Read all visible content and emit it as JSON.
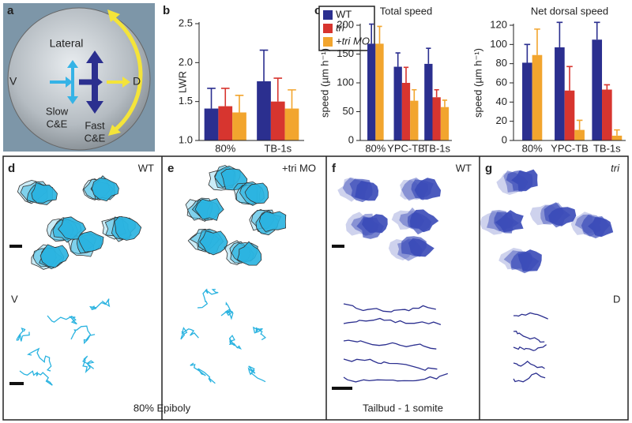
{
  "chart_data": [
    {
      "type": "bar",
      "ylabel": "LWR",
      "categories": [
        "80%",
        "TB-1s"
      ],
      "series": [
        {
          "name": "WT",
          "color": "#2b2f8f",
          "values": [
            1.41,
            1.76
          ],
          "errors": [
            0.26,
            0.4
          ]
        },
        {
          "name": "tri",
          "color": "#d7352f",
          "values": [
            1.44,
            1.5
          ],
          "errors": [
            0.23,
            0.3
          ]
        },
        {
          "name": "+tri MO",
          "color": "#f2a52e",
          "values": [
            1.36,
            1.41
          ],
          "errors": [
            0.22,
            0.24
          ]
        }
      ],
      "ylim": [
        1.0,
        2.5
      ],
      "yticks": [
        {
          "value": 1.0,
          "label": "1.0"
        },
        {
          "value": 1.5,
          "label": "1.5"
        },
        {
          "value": 2.0,
          "label": "2.0"
        },
        {
          "value": 2.5,
          "label": "2.5"
        }
      ]
    },
    {
      "type": "bar",
      "title": "Total speed",
      "ylabel": "speed (µm h⁻¹)",
      "categories": [
        "80%",
        "YPC-TB",
        "TB-1s"
      ],
      "series": [
        {
          "color": "#2b2f8f",
          "values": [
            168,
            128,
            133
          ],
          "errors": [
            34,
            24,
            27
          ]
        },
        {
          "color": "#d7352f",
          "values": [
            null,
            100,
            75
          ],
          "errors": [
            null,
            27,
            13
          ]
        },
        {
          "color": "#f2a52e",
          "values": [
            168,
            69,
            58
          ],
          "errors": [
            30,
            19,
            12
          ]
        }
      ],
      "ylim": [
        0,
        200
      ],
      "yticks": [
        0,
        50,
        100,
        150,
        200
      ]
    },
    {
      "type": "bar",
      "title": "Net dorsal speed",
      "ylabel": "speed (µm h⁻¹)",
      "categories": [
        "80%",
        "YPC-TB",
        "TB-1s"
      ],
      "series": [
        {
          "color": "#2b2f8f",
          "values": [
            81,
            97,
            105
          ],
          "errors": [
            19,
            26,
            18
          ]
        },
        {
          "color": "#d7352f",
          "values": [
            null,
            52,
            53
          ],
          "errors": [
            null,
            25,
            5
          ]
        },
        {
          "color": "#f2a52e",
          "values": [
            89,
            11,
            5
          ],
          "errors": [
            27,
            10,
            6
          ]
        }
      ],
      "ylim": [
        0,
        120
      ],
      "yticks": [
        0,
        20,
        40,
        60,
        80,
        100,
        120
      ]
    }
  ],
  "panel_labels": [
    "a",
    "b",
    "c",
    "d",
    "e",
    "f",
    "g"
  ],
  "diagram": {
    "lateral": "Lateral",
    "ventral": "V",
    "dorsal": "D",
    "slow": "Slow",
    "slow_ce": "C&E",
    "fast": "Fast",
    "fast_ce": "C&E"
  },
  "tracks": {
    "d_label": "WT",
    "e_label": "+tri MO",
    "f_label": "WT",
    "g_label": "tri",
    "ventral": "V",
    "dorsal": "D",
    "epiboly": "80% Epiboly",
    "tailbud": "Tailbud - 1 somite"
  }
}
